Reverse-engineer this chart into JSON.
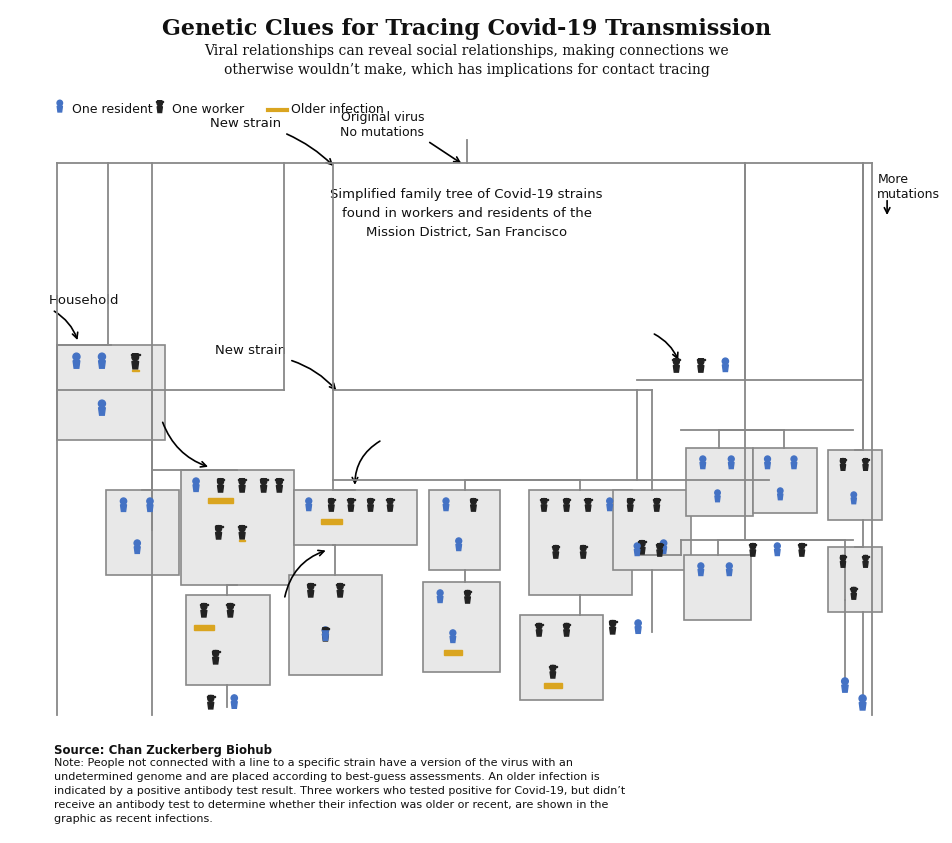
{
  "title": "Genetic Clues for Tracing Covid-19 Transmission",
  "subtitle": "Viral relationships can reveal social relationships, making connections we\notherwise wouldn’t make, which has implications for contact tracing",
  "legend_resident": "One resident",
  "legend_worker": "One worker",
  "legend_older": "Older infection",
  "annotation_original": "Original virus\nNo mutations",
  "annotation_more": "More\nmutations",
  "annotation_household": "Household",
  "annotation_newstrain1": "New strain",
  "annotation_newstrain2": "New strain",
  "annotation_desc": "Simplified family tree of Covid-19 strains\nfound in workers and residents of the\nMission District, San Francisco",
  "source_text": "Source: Chan Zuckerberg Biohub",
  "note_text": "Note: People not connected with a line to a specific strain have a version of the virus with an\nundetermined genome and are placed according to best-guess assessments. An older infection is\nindicated by a positive antibody test result. Three workers who tested positive for Covid-19, but didn’t\nreceive an antibody test to determine whether their infection was older or recent, are shown in the\ngraphic as recent infections.",
  "blue_color": "#4472C4",
  "black_color": "#222222",
  "gold_color": "#DAA520",
  "box_bg": "#e8e8e8",
  "line_color": "#888888",
  "bg_color": "#ffffff"
}
